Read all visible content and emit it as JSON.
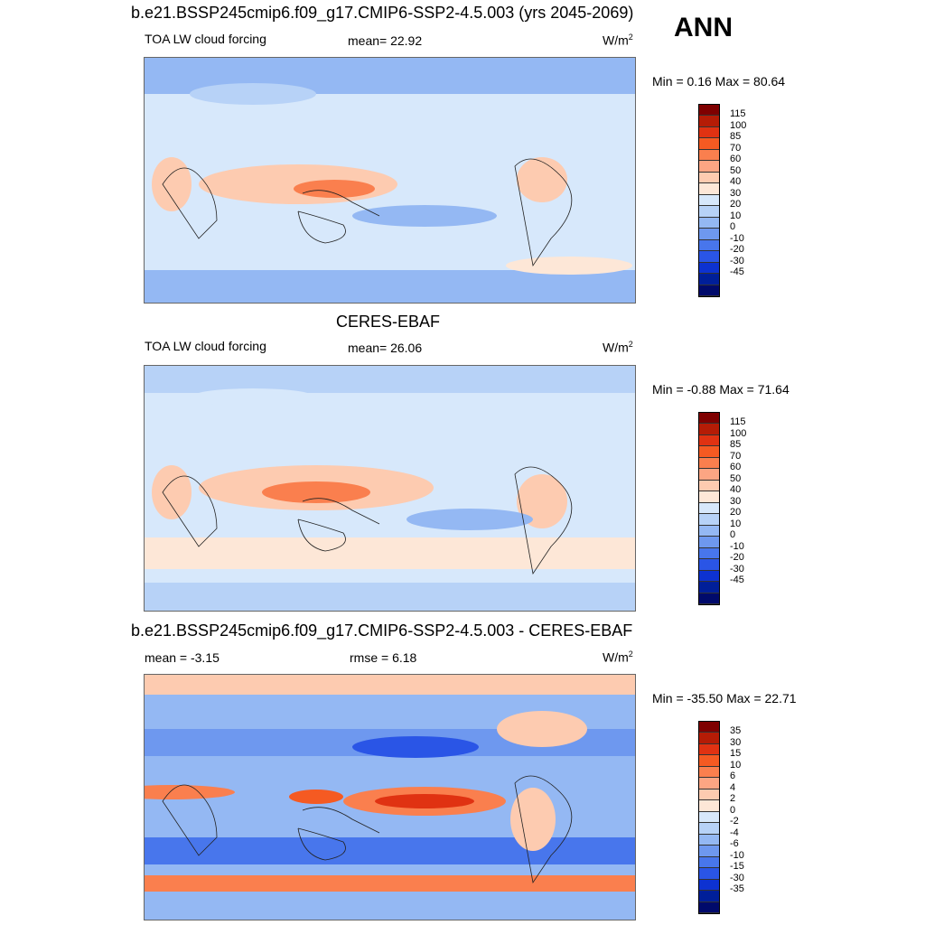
{
  "season": "ANN",
  "panels": [
    {
      "title": "b.e21.BSSP245cmip6.f09_g17.CMIP6-SSP2-4.5.003 (yrs 2045-2069)",
      "left": "TOA LW cloud forcing",
      "center": "mean=  22.92",
      "units_base": "W/m",
      "units_sup": "2",
      "minmax": "Min =   0.16 Max =  80.64",
      "levels": [
        "115",
        "100",
        "85",
        "70",
        "60",
        "50",
        "40",
        "30",
        "20",
        "10",
        "0",
        "-10",
        "-20",
        "-30",
        "-45"
      ],
      "colors": [
        "#7f0000",
        "#b51c06",
        "#e03212",
        "#f55a22",
        "#fa7f4e",
        "#fca583",
        "#fdcbb0",
        "#fde7d7",
        "#d7e8fb",
        "#b7d2f7",
        "#94b8f3",
        "#6e98ef",
        "#4876ec",
        "#2a55e6",
        "#0d32d1",
        "#001f99",
        "#000a6b"
      ]
    },
    {
      "title": "CERES-EBAF",
      "left": "TOA LW cloud forcing",
      "center": "mean=  26.06",
      "units_base": "W/m",
      "units_sup": "2",
      "minmax": "Min =  -0.88 Max =  71.64",
      "levels": [
        "115",
        "100",
        "85",
        "70",
        "60",
        "50",
        "40",
        "30",
        "20",
        "10",
        "0",
        "-10",
        "-20",
        "-30",
        "-45"
      ],
      "colors": [
        "#7f0000",
        "#b51c06",
        "#e03212",
        "#f55a22",
        "#fa7f4e",
        "#fca583",
        "#fdcbb0",
        "#fde7d7",
        "#d7e8fb",
        "#b7d2f7",
        "#94b8f3",
        "#6e98ef",
        "#4876ec",
        "#2a55e6",
        "#0d32d1",
        "#001f99",
        "#000a6b"
      ]
    },
    {
      "title": "b.e21.BSSP245cmip6.f09_g17.CMIP6-SSP2-4.5.003 - CERES-EBAF",
      "left": "mean =  -3.15",
      "center": "rmse =   6.18",
      "units_base": "W/m",
      "units_sup": "2",
      "minmax": "Min = -35.50 Max =  22.71",
      "levels": [
        "35",
        "30",
        "15",
        "10",
        "6",
        "4",
        "2",
        "0",
        "-2",
        "-4",
        "-6",
        "-10",
        "-15",
        "-30",
        "-35"
      ],
      "colors": [
        "#7f0000",
        "#b51c06",
        "#e03212",
        "#f55a22",
        "#fa7f4e",
        "#fca583",
        "#fdcbb0",
        "#fde7d7",
        "#d7e8fb",
        "#b7d2f7",
        "#94b8f3",
        "#6e98ef",
        "#4876ec",
        "#2a55e6",
        "#0d32d1",
        "#001f99",
        "#000a6b"
      ]
    }
  ]
}
